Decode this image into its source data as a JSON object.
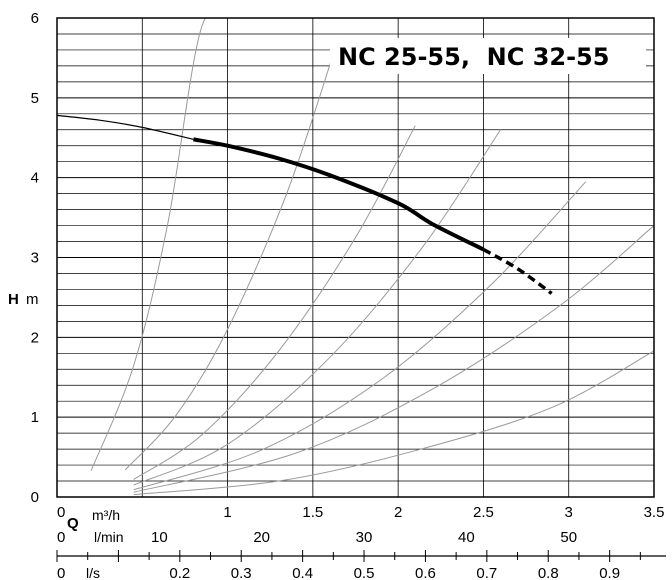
{
  "chart_data": {
    "type": "line",
    "title": "NC 25-55,  NC 32-55",
    "ylabel": {
      "symbol": "H",
      "unit": "m"
    },
    "xlabel": {
      "symbol": "Q",
      "unit": "m³/h"
    },
    "secondary_axes": [
      {
        "unit": "l/min",
        "ticks": [
          "0",
          "10",
          "20",
          "30",
          "40",
          "50"
        ]
      },
      {
        "unit": "l/s",
        "ticks": [
          "0",
          "0.2",
          "0.3",
          "0.4",
          "0.5",
          "0.6",
          "0.7",
          "0.8",
          "0.9"
        ]
      }
    ],
    "xlim": [
      0,
      3.5
    ],
    "ylim": [
      0,
      6
    ],
    "x_ticks": [
      "0",
      "1",
      "1.5",
      "2",
      "2.5",
      "3",
      "3.5"
    ],
    "y_ticks": [
      "0",
      "1",
      "2",
      "3",
      "4",
      "5",
      "6"
    ],
    "grid": true,
    "series": [
      {
        "style": "thin",
        "x": [
          0,
          0.25,
          0.5,
          0.8
        ],
        "y": [
          4.78,
          4.72,
          4.63,
          4.48
        ]
      },
      {
        "style": "bold",
        "x": [
          0.8,
          1.0,
          1.3,
          1.6,
          2.0,
          2.2,
          2.5
        ],
        "y": [
          4.48,
          4.4,
          4.24,
          4.03,
          3.68,
          3.42,
          3.1
        ]
      },
      {
        "style": "dashed",
        "x": [
          2.5,
          2.7,
          2.9
        ],
        "y": [
          3.1,
          2.86,
          2.55
        ]
      }
    ],
    "system_curves": [
      {
        "x": [
          0.2,
          0.45,
          0.65,
          0.85,
          1.05
        ],
        "y": [
          0.33,
          1.65,
          3.43,
          5.9,
          6.0
        ]
      },
      {
        "x": [
          0.4,
          0.7,
          1.0,
          1.35,
          1.65
        ],
        "y": [
          0.34,
          1.03,
          2.1,
          3.82,
          5.75
        ]
      },
      {
        "x": [
          0.45,
          0.85,
          1.3,
          1.75,
          2.1
        ],
        "y": [
          0.22,
          0.78,
          1.83,
          3.25,
          4.65
        ]
      },
      {
        "x": [
          0.45,
          1.0,
          1.6,
          2.15,
          2.6
        ],
        "y": [
          0.15,
          0.66,
          1.75,
          3.15,
          4.6
        ]
      },
      {
        "x": [
          0.45,
          1.2,
          1.9,
          2.55,
          3.1
        ],
        "y": [
          0.09,
          0.59,
          1.47,
          2.67,
          3.95
        ]
      },
      {
        "x": [
          0.45,
          1.4,
          2.2,
          2.95,
          3.5
        ],
        "y": [
          0.06,
          0.55,
          1.35,
          2.4,
          3.4
        ]
      },
      {
        "x": [
          0.45,
          1.3,
          2.1,
          2.9,
          3.5
        ],
        "y": [
          0.03,
          0.2,
          0.58,
          1.12,
          1.83
        ]
      }
    ]
  }
}
